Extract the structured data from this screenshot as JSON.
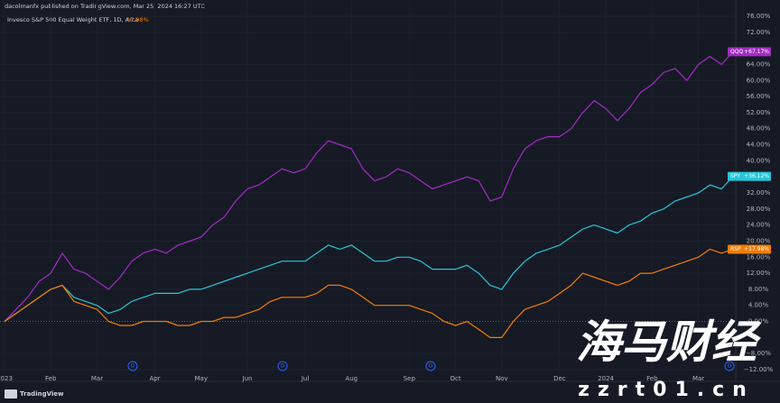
{
  "header": {
    "publisher": "dacolmanfx published on TradingView.com, Mar 25, 2024 16:27 UTC",
    "legend_title": "Invesco S&P 500 Equal Weight ETF, 1D, Arca",
    "legend_value": "17.98%"
  },
  "footer": {
    "brand": "TradingView"
  },
  "watermark": {
    "title": "海马财经",
    "site": "zzrt01.cn"
  },
  "chart_data": {
    "type": "line",
    "categories": [
      "2023",
      null,
      null,
      null,
      "Feb",
      null,
      null,
      null,
      "Mar",
      null,
      null,
      null,
      null,
      "Apr",
      null,
      null,
      null,
      "May",
      null,
      null,
      null,
      "Jun",
      null,
      null,
      null,
      null,
      "Jul",
      null,
      null,
      null,
      "Aug",
      null,
      null,
      null,
      null,
      "Sep",
      null,
      null,
      null,
      "Oct",
      null,
      null,
      null,
      "Nov",
      null,
      null,
      null,
      null,
      "Dec",
      null,
      null,
      null,
      "2024",
      null,
      null,
      null,
      "Feb",
      null,
      null,
      null,
      "Mar",
      null,
      null,
      null
    ],
    "series": [
      {
        "name": "QQQ",
        "color": "#a22cc4",
        "values": [
          0,
          3,
          6,
          10,
          12,
          17,
          13,
          12,
          10,
          8,
          11,
          15,
          17,
          18,
          17,
          19,
          20,
          21,
          24,
          26,
          30,
          33,
          34,
          36,
          38,
          37,
          38,
          42,
          45,
          44,
          43,
          38,
          35,
          36,
          38,
          37,
          35,
          33,
          34,
          35,
          36,
          35,
          30,
          31,
          38,
          43,
          45,
          46,
          46,
          48,
          52,
          55,
          53,
          50,
          53,
          57,
          59,
          62,
          63,
          60,
          64,
          66,
          64,
          67.17
        ],
        "value_labels": [
          null,
          null,
          null,
          null,
          null,
          null,
          null,
          null,
          null,
          null,
          null,
          null,
          null,
          null,
          null,
          null,
          null,
          null,
          null,
          null,
          null,
          null,
          null,
          null,
          null,
          null,
          null,
          null,
          null,
          null,
          null,
          null,
          null,
          null,
          null,
          null,
          null,
          null,
          null,
          null,
          null,
          null,
          null,
          null,
          null,
          null,
          null,
          null,
          null,
          null,
          null,
          null,
          null,
          null,
          null,
          null,
          null,
          null,
          null,
          null,
          null,
          null,
          null,
          "+67.17%"
        ]
      },
      {
        "name": "SPY",
        "color": "#26c6da",
        "values": [
          0,
          2,
          4,
          6,
          8,
          9,
          6,
          5,
          4,
          2,
          3,
          5,
          6,
          7,
          7,
          7,
          8,
          8,
          9,
          10,
          11,
          12,
          13,
          14,
          15,
          15,
          15,
          17,
          19,
          18,
          19,
          17,
          15,
          15,
          16,
          16,
          15,
          13,
          13,
          13,
          14,
          12,
          9,
          8,
          12,
          15,
          17,
          18,
          19,
          21,
          23,
          24,
          23,
          22,
          24,
          25,
          27,
          28,
          30,
          31,
          32,
          34,
          33,
          36.12
        ],
        "value_labels": [
          null,
          null,
          null,
          null,
          null,
          null,
          null,
          null,
          null,
          null,
          null,
          null,
          null,
          null,
          null,
          null,
          null,
          null,
          null,
          null,
          null,
          null,
          null,
          null,
          null,
          null,
          null,
          null,
          null,
          null,
          null,
          null,
          null,
          null,
          null,
          null,
          null,
          null,
          null,
          null,
          null,
          null,
          null,
          null,
          null,
          null,
          null,
          null,
          null,
          null,
          null,
          null,
          null,
          null,
          null,
          null,
          null,
          null,
          null,
          null,
          null,
          null,
          null,
          "+36.12%"
        ]
      },
      {
        "name": "RSP",
        "color": "#f57c00",
        "values": [
          0,
          2,
          4,
          6,
          8,
          9,
          5,
          4,
          3,
          0,
          -1,
          -1,
          0,
          0,
          0,
          -1,
          -1,
          0,
          0,
          1,
          1,
          2,
          3,
          5,
          6,
          6,
          6,
          7,
          9,
          9,
          8,
          6,
          4,
          4,
          4,
          4,
          3,
          2,
          0,
          -1,
          0,
          -2,
          -4,
          -4,
          0,
          3,
          4,
          5,
          7,
          9,
          12,
          11,
          10,
          9,
          10,
          12,
          12,
          13,
          14,
          15,
          16,
          18,
          17,
          17.98
        ],
        "value_labels": [
          null,
          null,
          null,
          null,
          null,
          null,
          null,
          null,
          null,
          null,
          null,
          null,
          null,
          null,
          null,
          null,
          null,
          null,
          null,
          null,
          null,
          null,
          null,
          null,
          null,
          null,
          null,
          null,
          null,
          null,
          null,
          null,
          null,
          null,
          null,
          null,
          null,
          null,
          null,
          null,
          null,
          null,
          null,
          null,
          null,
          null,
          null,
          null,
          null,
          null,
          null,
          null,
          null,
          null,
          null,
          null,
          null,
          null,
          null,
          null,
          null,
          null,
          null,
          "+17.98%"
        ]
      }
    ],
    "ylim": [
      -14,
      78
    ],
    "yticks": [
      {
        "value": 76,
        "label": "76.00%"
      },
      {
        "value": 72,
        "label": "72.00%"
      },
      {
        "value": 64,
        "label": "64.00%"
      },
      {
        "value": 60,
        "label": "60.00%"
      },
      {
        "value": 56,
        "label": "56.00%"
      },
      {
        "value": 52,
        "label": "52.00%"
      },
      {
        "value": 48,
        "label": "48.00%"
      },
      {
        "value": 44,
        "label": "44.00%"
      },
      {
        "value": 40,
        "label": "40.00%"
      },
      {
        "value": 32,
        "label": "32.00%"
      },
      {
        "value": 28,
        "label": "28.00%"
      },
      {
        "value": 24,
        "label": "24.00%"
      },
      {
        "value": 20,
        "label": "20.00%"
      },
      {
        "value": 16,
        "label": "16.00%"
      },
      {
        "value": 12,
        "label": "12.00%"
      },
      {
        "value": 8,
        "label": "8.00%"
      },
      {
        "value": 4,
        "label": "4.00%"
      },
      {
        "value": 0,
        "label": "0.00%"
      },
      {
        "value": -8,
        "label": "−8.00%"
      },
      {
        "value": -12,
        "label": "−12.00%"
      }
    ],
    "grid": true
  }
}
